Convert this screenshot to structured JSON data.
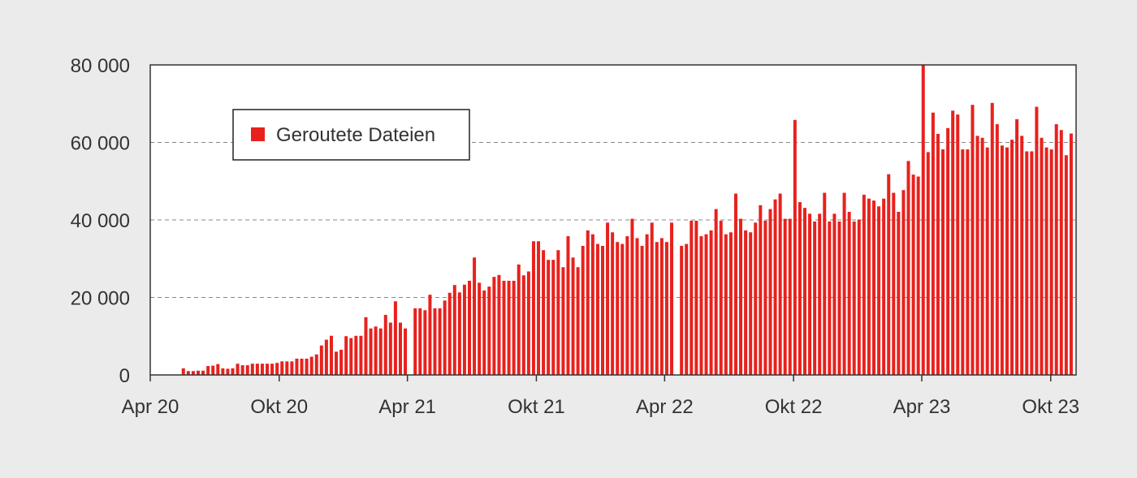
{
  "chart_data": {
    "type": "bar",
    "legend": {
      "label": "Geroutete Dateien",
      "placement": "top-left"
    },
    "x_ticks": [
      "Apr 20",
      "Okt 20",
      "Apr 21",
      "Okt 21",
      "Apr 22",
      "Okt 22",
      "Apr 23",
      "Okt 23"
    ],
    "y_ticks": [
      "0",
      "20 000",
      "40 000",
      "60 000",
      "80 000"
    ],
    "ylim": [
      0,
      80000
    ],
    "x_range": [
      "2020-04-01",
      "2023-11-06"
    ],
    "grid": {
      "y": true,
      "style": "dashed"
    },
    "colors": {
      "bar": "#e8211d",
      "background": "#ebebeb",
      "plot": "#ffffff",
      "axis": "#333333",
      "grid": "#888888"
    },
    "series": [
      {
        "name": "Geroutete Dateien",
        "values": [
          [
            "2020-05-18",
            1700
          ],
          [
            "2020-05-25",
            1000
          ],
          [
            "2020-06-01",
            1000
          ],
          [
            "2020-06-08",
            1100
          ],
          [
            "2020-06-15",
            1100
          ],
          [
            "2020-06-22",
            2300
          ],
          [
            "2020-06-29",
            2400
          ],
          [
            "2020-07-06",
            2800
          ],
          [
            "2020-07-13",
            1700
          ],
          [
            "2020-07-20",
            1600
          ],
          [
            "2020-07-27",
            1700
          ],
          [
            "2020-08-03",
            2900
          ],
          [
            "2020-08-10",
            2500
          ],
          [
            "2020-08-17",
            2500
          ],
          [
            "2020-08-24",
            2900
          ],
          [
            "2020-08-31",
            2900
          ],
          [
            "2020-09-07",
            2900
          ],
          [
            "2020-09-14",
            2900
          ],
          [
            "2020-09-21",
            2900
          ],
          [
            "2020-09-28",
            3100
          ],
          [
            "2020-10-05",
            3500
          ],
          [
            "2020-10-12",
            3500
          ],
          [
            "2020-10-19",
            3500
          ],
          [
            "2020-10-26",
            4200
          ],
          [
            "2020-11-02",
            4200
          ],
          [
            "2020-11-09",
            4200
          ],
          [
            "2020-11-16",
            4700
          ],
          [
            "2020-11-23",
            5300
          ],
          [
            "2020-11-30",
            7600
          ],
          [
            "2020-12-07",
            9100
          ],
          [
            "2020-12-14",
            10100
          ],
          [
            "2020-12-21",
            6000
          ],
          [
            "2020-12-28",
            6500
          ],
          [
            "2021-01-04",
            10000
          ],
          [
            "2021-01-11",
            9500
          ],
          [
            "2021-01-18",
            10100
          ],
          [
            "2021-01-25",
            10100
          ],
          [
            "2021-02-01",
            14900
          ],
          [
            "2021-02-08",
            12000
          ],
          [
            "2021-02-15",
            12500
          ],
          [
            "2021-02-22",
            12000
          ],
          [
            "2021-03-01",
            15500
          ],
          [
            "2021-03-08",
            13500
          ],
          [
            "2021-03-15",
            19000
          ],
          [
            "2021-03-22",
            13500
          ],
          [
            "2021-03-29",
            12000
          ],
          [
            "2021-04-12",
            17200
          ],
          [
            "2021-04-19",
            17200
          ],
          [
            "2021-04-26",
            16700
          ],
          [
            "2021-05-03",
            20700
          ],
          [
            "2021-05-10",
            17200
          ],
          [
            "2021-05-17",
            17200
          ],
          [
            "2021-05-24",
            19200
          ],
          [
            "2021-05-31",
            21200
          ],
          [
            "2021-06-07",
            23200
          ],
          [
            "2021-06-14",
            21300
          ],
          [
            "2021-06-21",
            23300
          ],
          [
            "2021-06-28",
            24300
          ],
          [
            "2021-07-05",
            30300
          ],
          [
            "2021-07-12",
            23800
          ],
          [
            "2021-07-19",
            21800
          ],
          [
            "2021-07-26",
            22800
          ],
          [
            "2021-08-02",
            25300
          ],
          [
            "2021-08-09",
            25800
          ],
          [
            "2021-08-16",
            24300
          ],
          [
            "2021-08-23",
            24300
          ],
          [
            "2021-08-30",
            24300
          ],
          [
            "2021-09-06",
            28500
          ],
          [
            "2021-09-13",
            25700
          ],
          [
            "2021-09-20",
            26700
          ],
          [
            "2021-09-27",
            34500
          ],
          [
            "2021-10-04",
            34500
          ],
          [
            "2021-10-11",
            32200
          ],
          [
            "2021-10-18",
            29700
          ],
          [
            "2021-10-25",
            29700
          ],
          [
            "2021-11-01",
            32200
          ],
          [
            "2021-11-08",
            27800
          ],
          [
            "2021-11-15",
            35800
          ],
          [
            "2021-11-22",
            30300
          ],
          [
            "2021-11-29",
            27800
          ],
          [
            "2021-12-06",
            33300
          ],
          [
            "2021-12-13",
            37300
          ],
          [
            "2021-12-20",
            36300
          ],
          [
            "2021-12-27",
            33800
          ],
          [
            "2022-01-03",
            33300
          ],
          [
            "2022-01-10",
            39300
          ],
          [
            "2022-01-17",
            36800
          ],
          [
            "2022-01-24",
            34300
          ],
          [
            "2022-01-31",
            33800
          ],
          [
            "2022-02-07",
            35800
          ],
          [
            "2022-02-14",
            40300
          ],
          [
            "2022-02-21",
            35300
          ],
          [
            "2022-02-28",
            33300
          ],
          [
            "2022-03-07",
            36300
          ],
          [
            "2022-03-14",
            39300
          ],
          [
            "2022-03-21",
            34300
          ],
          [
            "2022-03-28",
            35300
          ],
          [
            "2022-04-04",
            34300
          ],
          [
            "2022-04-11",
            39300
          ],
          [
            "2022-04-25",
            33300
          ],
          [
            "2022-05-02",
            33800
          ],
          [
            "2022-05-09",
            39800
          ],
          [
            "2022-05-16",
            39800
          ],
          [
            "2022-05-23",
            35800
          ],
          [
            "2022-05-30",
            36300
          ],
          [
            "2022-06-06",
            37300
          ],
          [
            "2022-06-13",
            42800
          ],
          [
            "2022-06-20",
            39800
          ],
          [
            "2022-06-27",
            36300
          ],
          [
            "2022-07-04",
            36800
          ],
          [
            "2022-07-11",
            46800
          ],
          [
            "2022-07-18",
            40300
          ],
          [
            "2022-07-25",
            37300
          ],
          [
            "2022-08-01",
            36800
          ],
          [
            "2022-08-08",
            39300
          ],
          [
            "2022-08-15",
            43800
          ],
          [
            "2022-08-22",
            39800
          ],
          [
            "2022-08-29",
            42800
          ],
          [
            "2022-09-05",
            45300
          ],
          [
            "2022-09-12",
            46800
          ],
          [
            "2022-09-19",
            40300
          ],
          [
            "2022-09-26",
            40300
          ],
          [
            "2022-10-03",
            65800
          ],
          [
            "2022-10-10",
            44600
          ],
          [
            "2022-10-17",
            43100
          ],
          [
            "2022-10-24",
            41600
          ],
          [
            "2022-10-31",
            39600
          ],
          [
            "2022-11-07",
            41600
          ],
          [
            "2022-11-14",
            47000
          ],
          [
            "2022-11-21",
            39600
          ],
          [
            "2022-11-28",
            41600
          ],
          [
            "2022-12-05",
            39600
          ],
          [
            "2022-12-12",
            47000
          ],
          [
            "2022-12-19",
            42100
          ],
          [
            "2022-12-26",
            39600
          ],
          [
            "2023-01-02",
            40100
          ],
          [
            "2023-01-09",
            46500
          ],
          [
            "2023-01-16",
            45500
          ],
          [
            "2023-01-23",
            45000
          ],
          [
            "2023-01-30",
            43500
          ],
          [
            "2023-02-06",
            45500
          ],
          [
            "2023-02-13",
            51800
          ],
          [
            "2023-02-20",
            47000
          ],
          [
            "2023-02-27",
            42100
          ],
          [
            "2023-03-06",
            47700
          ],
          [
            "2023-03-13",
            55200
          ],
          [
            "2023-03-20",
            51700
          ],
          [
            "2023-03-27",
            51200
          ],
          [
            "2023-04-03",
            80000
          ],
          [
            "2023-04-10",
            57500
          ],
          [
            "2023-04-17",
            67700
          ],
          [
            "2023-04-24",
            62200
          ],
          [
            "2023-05-01",
            58200
          ],
          [
            "2023-05-08",
            63700
          ],
          [
            "2023-05-15",
            68200
          ],
          [
            "2023-05-22",
            67200
          ],
          [
            "2023-05-29",
            58200
          ],
          [
            "2023-06-05",
            58200
          ],
          [
            "2023-06-12",
            69700
          ],
          [
            "2023-06-19",
            61700
          ],
          [
            "2023-06-26",
            61200
          ],
          [
            "2023-07-03",
            58700
          ],
          [
            "2023-07-10",
            70200
          ],
          [
            "2023-07-17",
            64700
          ],
          [
            "2023-07-24",
            59200
          ],
          [
            "2023-07-31",
            58700
          ],
          [
            "2023-08-07",
            60700
          ],
          [
            "2023-08-14",
            66000
          ],
          [
            "2023-08-21",
            61700
          ],
          [
            "2023-08-28",
            57700
          ],
          [
            "2023-09-04",
            57700
          ],
          [
            "2023-09-11",
            69200
          ],
          [
            "2023-09-18",
            61200
          ],
          [
            "2023-09-25",
            58700
          ],
          [
            "2023-10-02",
            58200
          ],
          [
            "2023-10-09",
            64700
          ],
          [
            "2023-10-16",
            63200
          ],
          [
            "2023-10-23",
            56700
          ],
          [
            "2023-10-30",
            62300
          ]
        ]
      }
    ]
  }
}
